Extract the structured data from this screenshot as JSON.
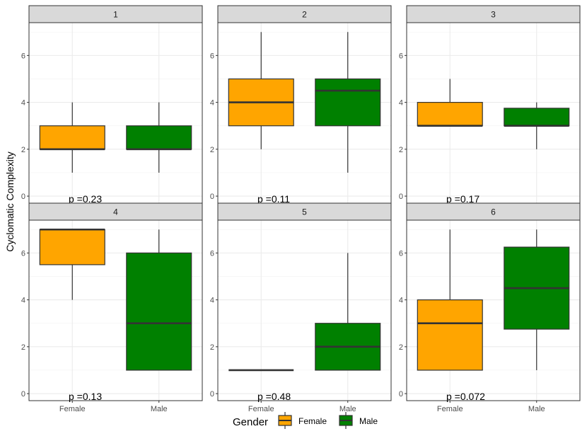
{
  "chart_data": {
    "type": "box",
    "ylabel": "Cyclomatic Complexity",
    "xlabel": "",
    "categories": [
      "Female",
      "Male"
    ],
    "ylim": [
      -0.3,
      7.4
    ],
    "yticks": [
      0,
      2,
      4,
      6
    ],
    "legend": {
      "title": "Gender",
      "entries": [
        {
          "label": "Female",
          "color": "#FFA500"
        },
        {
          "label": "Male",
          "color": "#008000"
        }
      ],
      "position": "bottom"
    },
    "panels": [
      {
        "label": "1",
        "pvalue": "p =0.23",
        "boxes": [
          {
            "group": "Female",
            "min": 1,
            "q1": 2,
            "median": 2,
            "q3": 3,
            "max": 4
          },
          {
            "group": "Male",
            "min": 1,
            "q1": 2,
            "median": 2,
            "q3": 3,
            "max": 4
          }
        ]
      },
      {
        "label": "2",
        "pvalue": "p =0.11",
        "boxes": [
          {
            "group": "Female",
            "min": 2,
            "q1": 3,
            "median": 4,
            "q3": 5,
            "max": 7
          },
          {
            "group": "Male",
            "min": 1,
            "q1": 3,
            "median": 4.5,
            "q3": 5,
            "max": 7
          }
        ]
      },
      {
        "label": "3",
        "pvalue": "p =0.17",
        "boxes": [
          {
            "group": "Female",
            "min": 3,
            "q1": 3,
            "median": 3,
            "q3": 4,
            "max": 5
          },
          {
            "group": "Male",
            "min": 2,
            "q1": 3,
            "median": 3,
            "q3": 3.75,
            "max": 4
          }
        ]
      },
      {
        "label": "4",
        "pvalue": "p =0.13",
        "boxes": [
          {
            "group": "Female",
            "min": 4,
            "q1": 5.5,
            "median": 7,
            "q3": 7,
            "max": 7
          },
          {
            "group": "Male",
            "min": 1,
            "q1": 1,
            "median": 3,
            "q3": 6,
            "max": 7
          }
        ]
      },
      {
        "label": "5",
        "pvalue": "p =0.48",
        "boxes": [
          {
            "group": "Female",
            "min": 1,
            "q1": 1,
            "median": 1,
            "q3": 1,
            "max": 1
          },
          {
            "group": "Male",
            "min": 1,
            "q1": 1,
            "median": 2,
            "q3": 3,
            "max": 6
          }
        ]
      },
      {
        "label": "6",
        "pvalue": "p =0.072",
        "boxes": [
          {
            "group": "Female",
            "min": 1,
            "q1": 1,
            "median": 3,
            "q3": 4,
            "max": 7
          },
          {
            "group": "Male",
            "min": 1,
            "q1": 2.75,
            "median": 4.5,
            "q3": 6.25,
            "max": 7
          }
        ]
      }
    ]
  }
}
